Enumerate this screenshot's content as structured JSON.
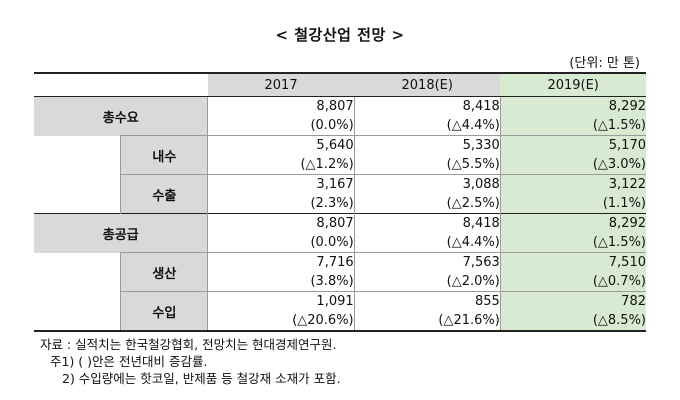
{
  "title": "< 철강산업 전망 >",
  "unit": "(단위: 만 톤)",
  "table": {
    "columns": [
      "2017",
      "2018(E)",
      "2019(E)"
    ],
    "rows": [
      {
        "main": "총수요",
        "sub": "",
        "values": [
          "8,807",
          "8,418",
          "8,292"
        ],
        "changes": [
          "(0.0%)",
          "(△4.4%)",
          "(△1.5%)"
        ]
      },
      {
        "main": "",
        "sub": "내수",
        "values": [
          "5,640",
          "5,330",
          "5,170"
        ],
        "changes": [
          "(△1.2%)",
          "(△5.5%)",
          "(△3.0%)"
        ]
      },
      {
        "main": "",
        "sub": "수출",
        "values": [
          "3,167",
          "3,088",
          "3,122"
        ],
        "changes": [
          "(2.3%)",
          "(△2.5%)",
          "(1.1%)"
        ]
      },
      {
        "main": "총공급",
        "sub": "",
        "values": [
          "8,807",
          "8,418",
          "8,292"
        ],
        "changes": [
          "(0.0%)",
          "(△4.4%)",
          "(△1.5%)"
        ]
      },
      {
        "main": "",
        "sub": "생산",
        "values": [
          "7,716",
          "7,563",
          "7,510"
        ],
        "changes": [
          "(3.8%)",
          "(△2.0%)",
          "(△0.7%)"
        ]
      },
      {
        "main": "",
        "sub": "수입",
        "values": [
          "1,091",
          "855",
          "782"
        ],
        "changes": [
          "(△20.6%)",
          "(△21.6%)",
          "(△8.5%)"
        ]
      }
    ]
  },
  "notes": [
    "자료 : 실적치는 한국철강협회, 전망치는 현대경제연구원.",
    "주1) ( )안은 전년대비 증감률.",
    "2) 수입량에는 핫코일, 반제품 등 철강재 소재가 포함."
  ],
  "colors": {
    "header_gray": "#d9d9d9",
    "forecast_green": "#d9ead3"
  }
}
